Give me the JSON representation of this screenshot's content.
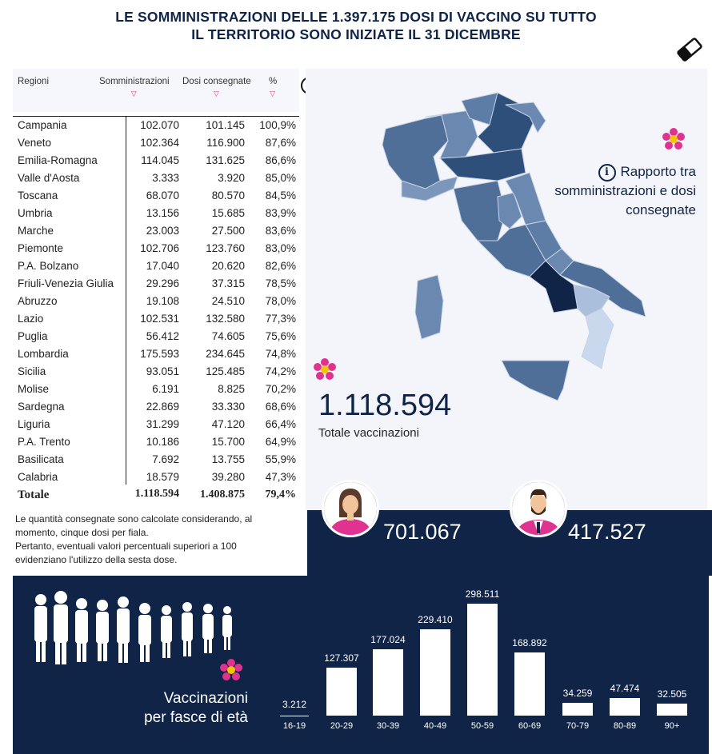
{
  "title": {
    "line1": "LE SOMMINISTRAZIONI DELLE 1.397.175 DOSI DI VACCINO SU TUTTO",
    "line2": "IL TERRITORIO SONO INIZIATE IL 31 DICEMBRE"
  },
  "table": {
    "headers": {
      "region": "Regioni",
      "administrations": "Somministrazioni",
      "doses": "Dosi consegnate",
      "pct": "%"
    },
    "rows": [
      {
        "region": "Campania",
        "administrations": "102.070",
        "doses": "101.145",
        "pct": "100,9%"
      },
      {
        "region": "Veneto",
        "administrations": "102.364",
        "doses": "116.900",
        "pct": "87,6%"
      },
      {
        "region": "Emilia-Romagna",
        "administrations": "114.045",
        "doses": "131.625",
        "pct": "86,6%"
      },
      {
        "region": "Valle d'Aosta",
        "administrations": "3.333",
        "doses": "3.920",
        "pct": "85,0%"
      },
      {
        "region": "Toscana",
        "administrations": "68.070",
        "doses": "80.570",
        "pct": "84,5%"
      },
      {
        "region": "Umbria",
        "administrations": "13.156",
        "doses": "15.685",
        "pct": "83,9%"
      },
      {
        "region": "Marche",
        "administrations": "23.003",
        "doses": "27.500",
        "pct": "83,6%"
      },
      {
        "region": "Piemonte",
        "administrations": "102.706",
        "doses": "123.760",
        "pct": "83,0%"
      },
      {
        "region": "P.A. Bolzano",
        "administrations": "17.040",
        "doses": "20.620",
        "pct": "82,6%"
      },
      {
        "region": "Friuli-Venezia Giulia",
        "administrations": "29.296",
        "doses": "37.315",
        "pct": "78,5%"
      },
      {
        "region": "Abruzzo",
        "administrations": "19.108",
        "doses": "24.510",
        "pct": "78,0%"
      },
      {
        "region": "Lazio",
        "administrations": "102.531",
        "doses": "132.580",
        "pct": "77,3%"
      },
      {
        "region": "Puglia",
        "administrations": "56.412",
        "doses": "74.605",
        "pct": "75,6%"
      },
      {
        "region": "Lombardia",
        "administrations": "175.593",
        "doses": "234.645",
        "pct": "74,8%"
      },
      {
        "region": "Sicilia",
        "administrations": "93.051",
        "doses": "125.485",
        "pct": "74,2%"
      },
      {
        "region": "Molise",
        "administrations": "6.191",
        "doses": "8.825",
        "pct": "70,2%"
      },
      {
        "region": "Sardegna",
        "administrations": "22.869",
        "doses": "33.330",
        "pct": "68,6%"
      },
      {
        "region": "Liguria",
        "administrations": "31.299",
        "doses": "47.120",
        "pct": "66,4%"
      },
      {
        "region": "P.A. Trento",
        "administrations": "10.186",
        "doses": "15.700",
        "pct": "64,9%"
      },
      {
        "region": "Basilicata",
        "administrations": "7.692",
        "doses": "13.755",
        "pct": "55,9%"
      },
      {
        "region": "Calabria",
        "administrations": "18.579",
        "doses": "39.280",
        "pct": "47,3%"
      }
    ],
    "total": {
      "region": "Totale",
      "administrations": "1.118.594",
      "doses": "1.408.875",
      "pct": "79,4%"
    }
  },
  "note": {
    "line1": "Le quantità consegnate sono calcolate considerando, al momento, cinque dosi per fiala.",
    "line2": "Pertanto, eventuali valori percentuali superiori a 100 evidenziano l'utilizzo della sesta dose."
  },
  "map": {
    "ratio_label": "Rapporto tra somministrazioni e dosi consegnate",
    "total_value": "1.118.594",
    "total_label": "Totale vaccinazioni"
  },
  "gender": {
    "female": "701.067",
    "male": "417.527"
  },
  "age_section": {
    "title_line1": "Vaccinazioni",
    "title_line2": "per fasce di età"
  },
  "chart_data": {
    "type": "bar",
    "categories": [
      "16-19",
      "20-29",
      "30-39",
      "40-49",
      "50-59",
      "60-69",
      "70-79",
      "80-89",
      "90+"
    ],
    "values": [
      3212,
      127307,
      177024,
      229410,
      298511,
      168892,
      34259,
      47474,
      32505
    ],
    "value_labels": [
      "3.212",
      "127.307",
      "177.024",
      "229.410",
      "298.511",
      "168.892",
      "34.259",
      "47.474",
      "32.505"
    ],
    "title": "Vaccinazioni per fasce di età",
    "xlabel": "",
    "ylabel": "",
    "grid": false,
    "colors": {
      "bar": "#ffffff",
      "background": "#0f2447"
    }
  },
  "colors": {
    "navy": "#0f2447",
    "accent_pink": "#e0338f",
    "map_mid": "#4a6a94"
  },
  "icons": {
    "eraser": "eraser-icon",
    "info": "info-icon",
    "flower": "flower-icon",
    "woman": "woman-avatar-icon",
    "man": "man-avatar-icon"
  }
}
